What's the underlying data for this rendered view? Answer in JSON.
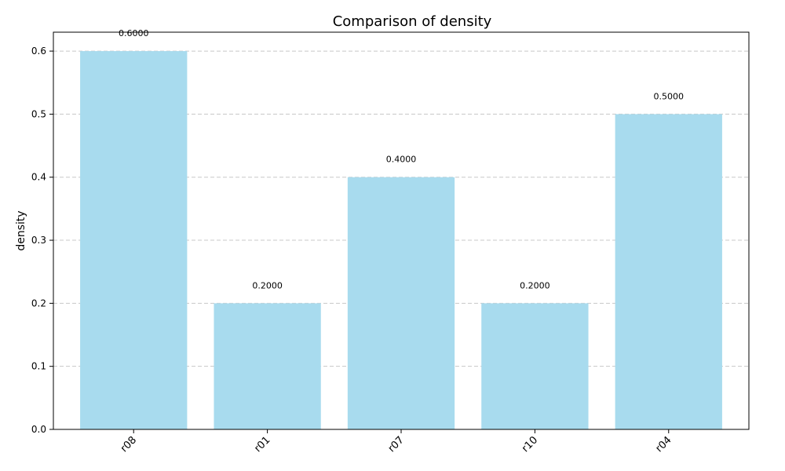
{
  "chart_data": {
    "type": "bar",
    "title": "Comparison of density",
    "xlabel": "",
    "ylabel": "density",
    "categories": [
      "r08",
      "r01",
      "r07",
      "r10",
      "r04"
    ],
    "values": [
      0.6,
      0.2,
      0.4,
      0.2,
      0.5
    ],
    "data_labels": [
      "0.6000",
      "0.2000",
      "0.4000",
      "0.2000",
      "0.5000"
    ],
    "yticks": [
      0.0,
      0.1,
      0.2,
      0.3,
      0.4,
      0.5,
      0.6
    ],
    "ytick_labels": [
      "0.0",
      "0.1",
      "0.2",
      "0.3",
      "0.4",
      "0.5",
      "0.6"
    ],
    "ylim": [
      0,
      0.63
    ],
    "grid": "y-dashed",
    "bar_color": "#a8dbee"
  }
}
